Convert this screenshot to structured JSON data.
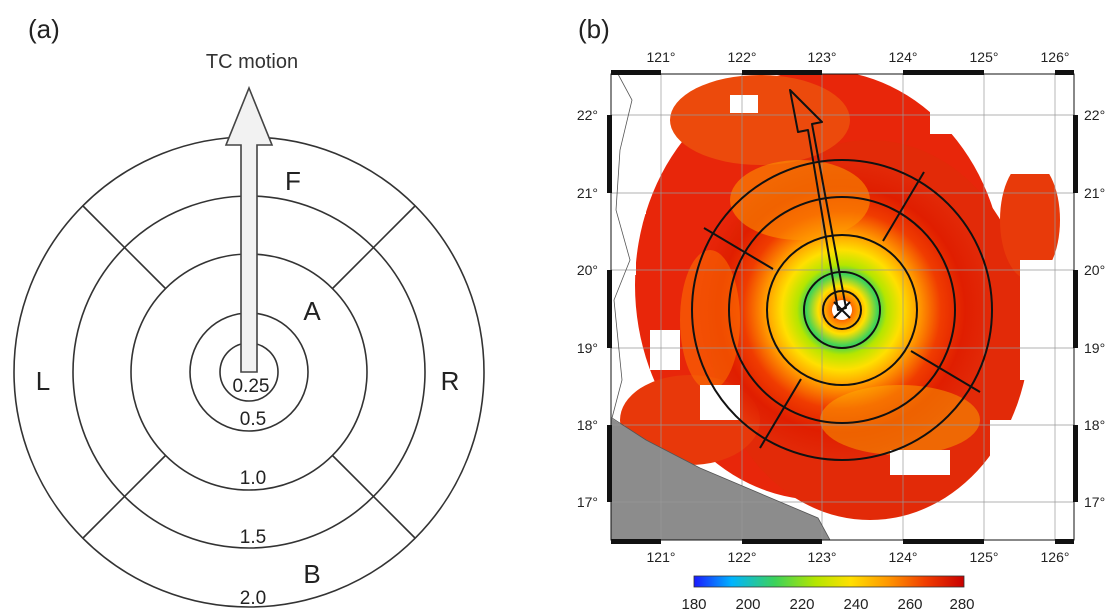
{
  "panel_a": {
    "label": "(a)",
    "motion_label": "TC motion",
    "radius_labels": [
      "0.25",
      "0.5",
      "1.0",
      "1.5",
      "2.0"
    ],
    "quadrant_labels": {
      "front": "F",
      "left": "L",
      "right": "R",
      "back": "B",
      "annulus": "A"
    }
  },
  "panel_b": {
    "label": "(b)",
    "lon_ticks_top": [
      "121°",
      "122°",
      "123°",
      "124°",
      "125°",
      "126°"
    ],
    "lon_ticks_bottom": [
      "121°",
      "122°",
      "123°",
      "124°",
      "125°",
      "126°"
    ],
    "lat_ticks_left": [
      "22°",
      "21°",
      "20°",
      "19°",
      "18°",
      "17°"
    ],
    "lat_ticks_right": [
      "22°",
      "21°",
      "20°",
      "19°",
      "18°",
      "17°"
    ],
    "colorbar": {
      "ticks": [
        "180",
        "200",
        "220",
        "240",
        "260",
        "280"
      ],
      "colors": [
        "#1a1aff",
        "#00b4ff",
        "#3cd25a",
        "#b4e600",
        "#ffe000",
        "#ff9600",
        "#f03c00",
        "#c80000"
      ]
    }
  }
}
